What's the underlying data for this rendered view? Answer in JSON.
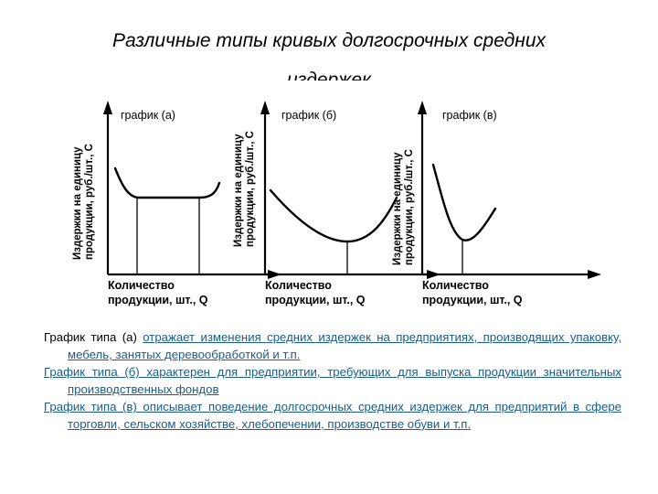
{
  "title": {
    "line1": "Различные типы кривых долгосрочных средних",
    "line2": "издержек"
  },
  "graphs": [
    {
      "label": "график (а)",
      "ylabel_line1": "Издержки на единицу",
      "ylabel_line2": "продукции, руб./шт., С",
      "xlabel_line1": "Количество",
      "xlabel_line2": "продукции, шт., Q"
    },
    {
      "label": "график (б)",
      "ylabel_line1": "Издержки на единицу",
      "ylabel_line2": "продукции, руб./шт., С",
      "xlabel_line1": "Количество",
      "xlabel_line2": "продукции, шт., Q"
    },
    {
      "label": "график (в)",
      "ylabel_line1": "Издержки на единицу",
      "ylabel_line2": "продукции, руб./шт., С",
      "xlabel_line1": "Количество",
      "xlabel_line2": "продукции, шт., Q"
    }
  ],
  "notes": {
    "a_prefix": "График типа (а) ",
    "a_link": "отражает изменения средних издержек на предприятиях, производящих упаковку, мебель, занятых деревообработкой и т.п.",
    "b_text": "График типа (б) характерен для предприятии, требующих для выпуска продукции значительных производственных фондов",
    "c_text": "График типа (в) описывает поведение долгосрочных средних издержек для предприятий в сфере торговли, сельском хозяйстве, хлебопечении, производстве обуви и т.п."
  },
  "icons": {
    "axis_arrow": "arrow-head-icon"
  }
}
